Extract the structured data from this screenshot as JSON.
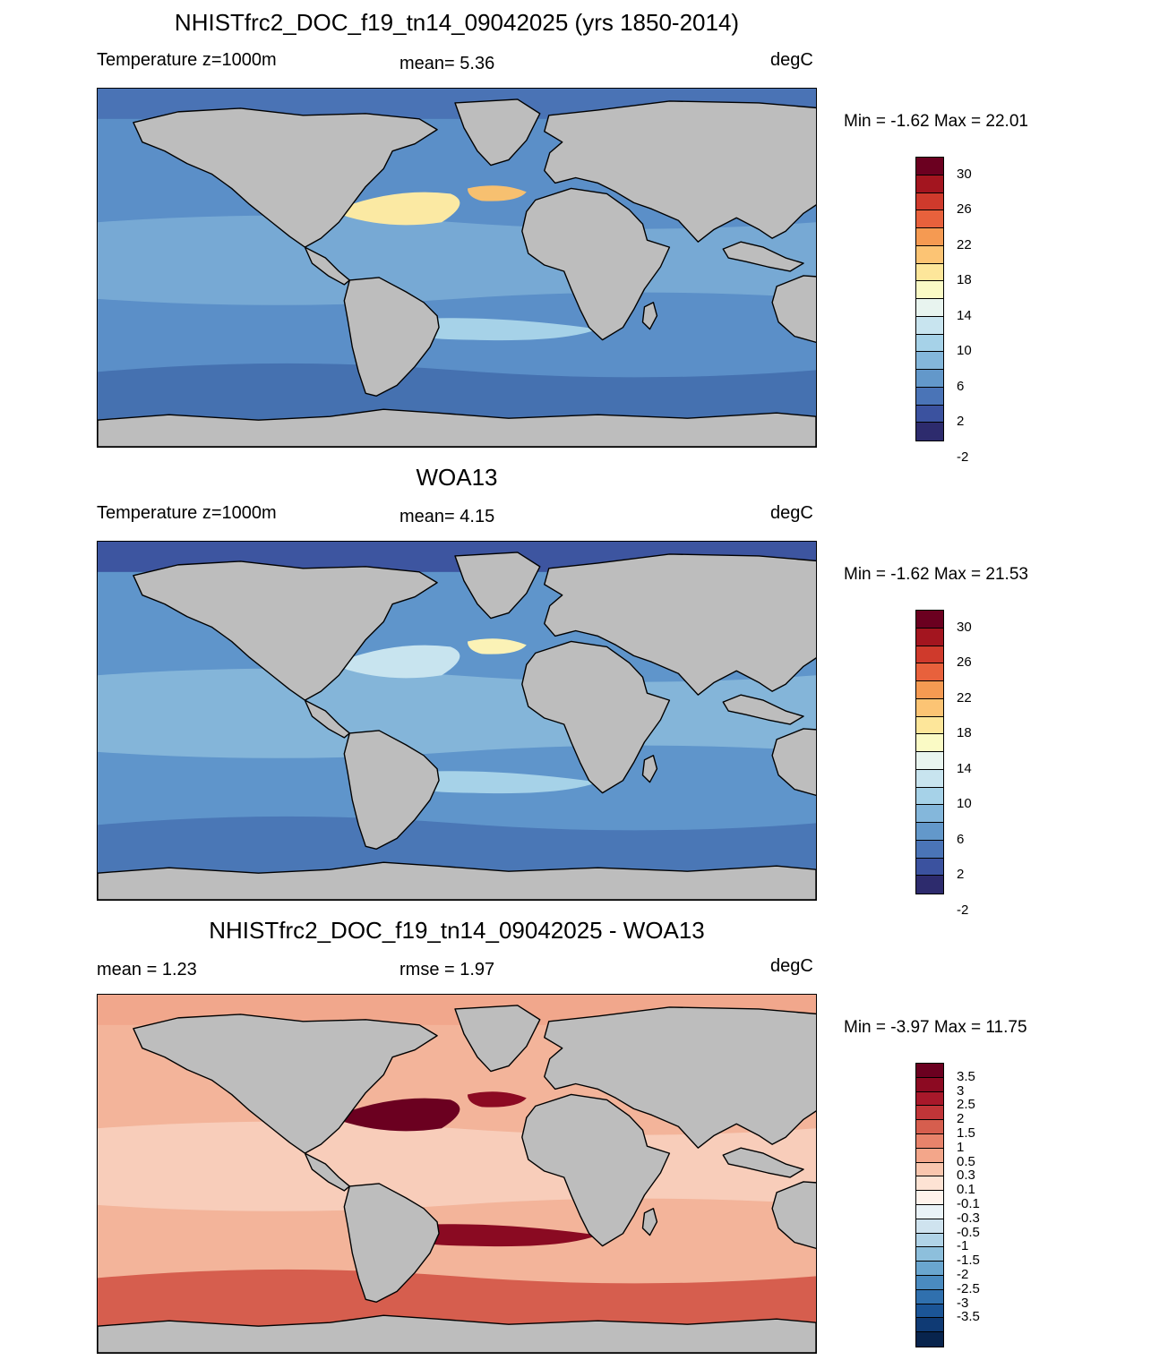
{
  "panels": [
    {
      "title": "NHISTfrc2_DOC_f19_tn14_09042025 (yrs 1850-2014)",
      "left_label": "Temperature z=1000m",
      "center_label": "mean=   5.36",
      "units": "degC",
      "minmax": "Min =  -1.62 Max =  22.01",
      "ocean_base": "#5b8fc8",
      "south_band": "#4571b0",
      "arctic": "#4a73b5",
      "tropic_band": "#8ebfdf",
      "highlights": [
        {
          "name": "north-atlantic-warm",
          "color": "#fbe9a3"
        },
        {
          "name": "mediterranean",
          "color": "#f7c070"
        },
        {
          "name": "arabian-sea",
          "color": "#fbe49a"
        },
        {
          "name": "south-atlantic",
          "color": "#a6d2e8"
        }
      ],
      "colorbar": {
        "colors": [
          "#6b0020",
          "#a3151f",
          "#cf3a2c",
          "#e8613c",
          "#f59a52",
          "#fcc474",
          "#fde69a",
          "#fafac5",
          "#e8f4ef",
          "#c8e4ef",
          "#a6d2e8",
          "#84b7db",
          "#6398ca",
          "#4a74b7",
          "#3b529f",
          "#2d2b6d"
        ],
        "labels": [
          "30",
          "26",
          "22",
          "18",
          "14",
          "10",
          "6",
          "2",
          "-2"
        ]
      }
    },
    {
      "title": "WOA13",
      "left_label": "Temperature z=1000m",
      "center_label": "mean=   4.15",
      "units": "degC",
      "minmax": "Min =  -1.62 Max =  21.53",
      "ocean_base": "#5f95cb",
      "south_band": "#4a77b6",
      "arctic": "#3d55a0",
      "tropic_band": "#a2cfe6",
      "highlights": [
        {
          "name": "north-atlantic-warm",
          "color": "#c8e4ef"
        },
        {
          "name": "mediterranean",
          "color": "#fbf2b6"
        },
        {
          "name": "arabian-sea",
          "color": "#bcdcec"
        },
        {
          "name": "south-atlantic",
          "color": "#a6d2e8"
        }
      ],
      "colorbar": {
        "colors": [
          "#6b0020",
          "#a3151f",
          "#cf3a2c",
          "#e8613c",
          "#f59a52",
          "#fcc474",
          "#fde69a",
          "#fafac5",
          "#e8f4ef",
          "#c8e4ef",
          "#a6d2e8",
          "#84b7db",
          "#6398ca",
          "#4a74b7",
          "#3b529f",
          "#2d2b6d"
        ],
        "labels": [
          "30",
          "26",
          "22",
          "18",
          "14",
          "10",
          "6",
          "2",
          "-2"
        ]
      }
    },
    {
      "title": "NHISTfrc2_DOC_f19_tn14_09042025 - WOA13",
      "left_label": "mean =    1.23",
      "center_label": "rmse =    1.97",
      "units": "degC",
      "minmax": "Min =  -3.97 Max =  11.75",
      "ocean_base": "#f3b49a",
      "south_band": "#d65e4e",
      "arctic": "#f1a78c",
      "tropic_band": "#fbe2d5",
      "highlights": [
        {
          "name": "north-atlantic-warm",
          "color": "#6b0020"
        },
        {
          "name": "mediterranean",
          "color": "#8c0a22"
        },
        {
          "name": "arabian-sea",
          "color": "#7a0521"
        },
        {
          "name": "south-atlantic",
          "color": "#8a0a22"
        }
      ],
      "colorbar": {
        "colors": [
          "#6b0020",
          "#8c0a22",
          "#a8182a",
          "#c13538",
          "#d65e4e",
          "#e8836b",
          "#f3a68a",
          "#f9c6ae",
          "#fde3d4",
          "#fff3ec",
          "#eaf3f8",
          "#cfe3ef",
          "#b0d3e7",
          "#8dbfdc",
          "#6aa6cf",
          "#4a8bc0",
          "#3070ae",
          "#1b5597",
          "#0f3a74",
          "#08244d"
        ],
        "labels": [
          "3.5",
          "3",
          "2.5",
          "2",
          "1.5",
          "1",
          "0.5",
          "0.3",
          "0.1",
          "-0.1",
          "-0.3",
          "-0.5",
          "-1",
          "-1.5",
          "-2",
          "-2.5",
          "-3",
          "-3.5"
        ]
      }
    }
  ],
  "colors": {
    "land": "#bdbdbd",
    "coast": "#000000"
  }
}
